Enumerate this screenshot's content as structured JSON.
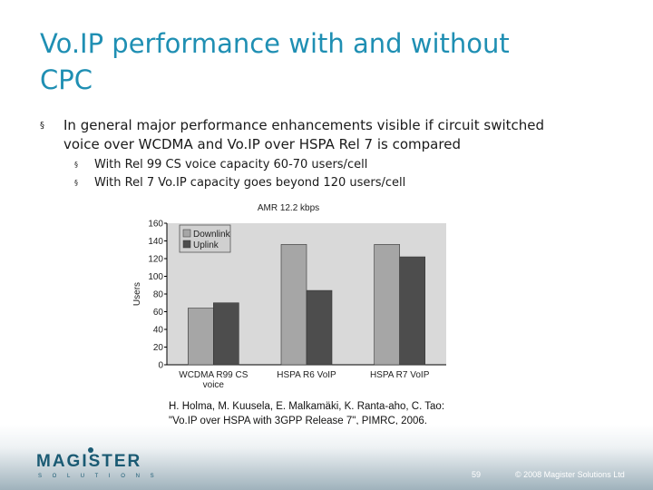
{
  "slide": {
    "title_lines": [
      "Vo.IP performance with and without",
      "CPC"
    ],
    "bullet_marker": "§",
    "bullet_main_lines": [
      "In general major performance enhancements visible if circuit switched",
      "voice over WCDMA and Vo.IP over HSPA Rel 7 is compared"
    ],
    "sub_bullets": [
      "With Rel 99 CS voice capacity 60-70 users/cell",
      "With Rel 7 Vo.IP capacity goes beyond 120 users/cell"
    ],
    "caption_lines": [
      "H. Holma, M. Kuusela, E. Malkamäki, K. Ranta-aho, C. Tao:",
      "\"Vo.IP over HSPA with 3GPP Release 7\", PIMRC, 2006."
    ]
  },
  "footer": {
    "logo_text": "MAGISTER",
    "logo_sub": "S O L U T I O N S",
    "page_number": "59",
    "copyright": "© 2008 Magister Solutions Ltd"
  },
  "colors": {
    "title": "#1f8fb3",
    "downlink": "#a6a6a6",
    "uplink": "#4d4d4d",
    "plot_bg": "#d9d9d9",
    "logo": "#1a5a73"
  },
  "chart_data": {
    "type": "bar",
    "title": "AMR 12.2 kbps",
    "ylabel": "Users",
    "xlabel": "",
    "ylim": [
      0,
      160
    ],
    "yticks": [
      0,
      20,
      40,
      60,
      80,
      100,
      120,
      140,
      160
    ],
    "categories": [
      "WCDMA R99 CS voice",
      "HSPA R6 VoIP",
      "HSPA R7 VoIP"
    ],
    "category_label_lines": [
      [
        "WCDMA R99 CS",
        "voice"
      ],
      [
        "HSPA R6 VoIP"
      ],
      [
        "HSPA R7 VoIP"
      ]
    ],
    "series": [
      {
        "name": "Downlink",
        "values": [
          64,
          136,
          136
        ]
      },
      {
        "name": "Uplink",
        "values": [
          70,
          84,
          122
        ]
      }
    ],
    "legend_position": "top-left",
    "grid": false
  }
}
